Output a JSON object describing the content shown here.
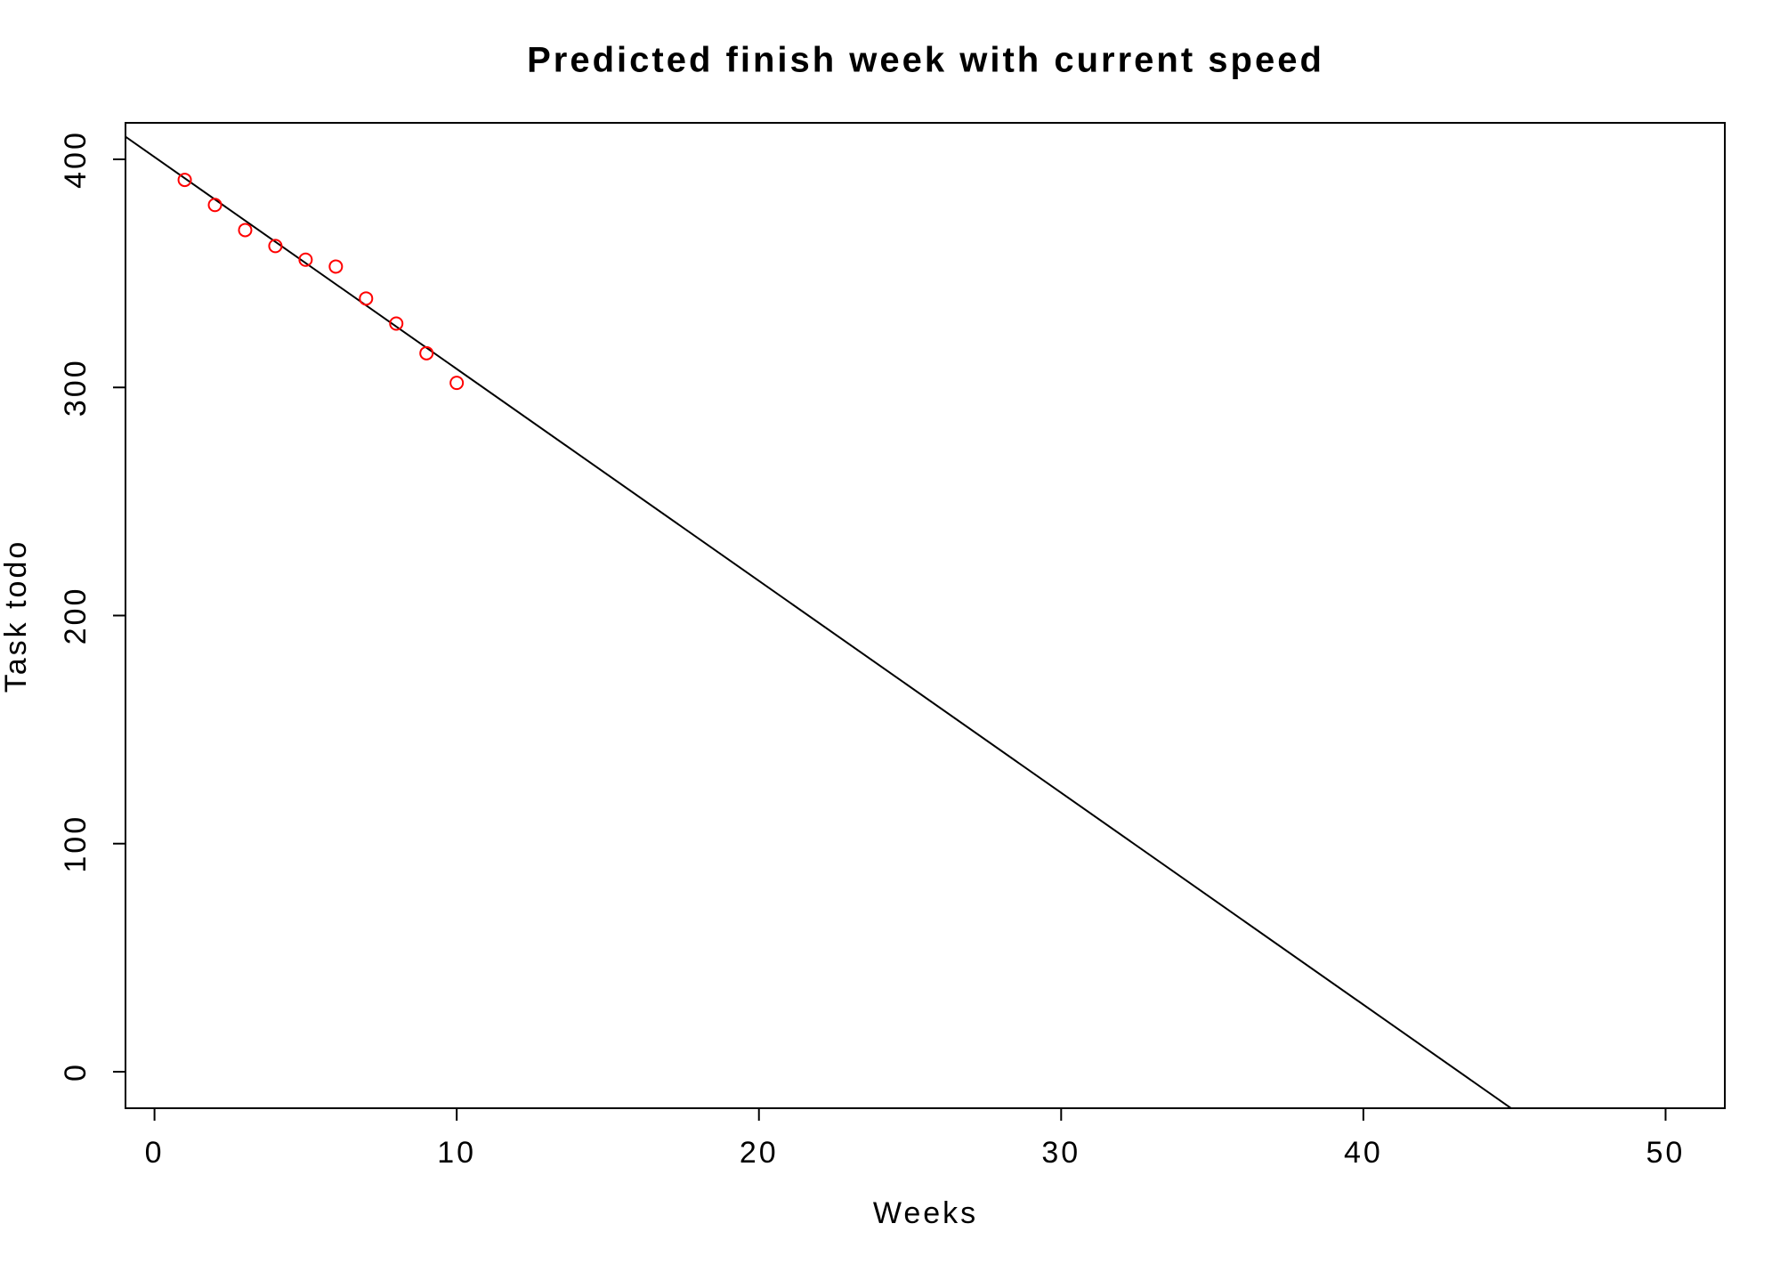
{
  "chart_data": {
    "type": "scatter",
    "title": "Predicted finish week with current speed",
    "x_label": "Weeks",
    "y_label": "Task todo",
    "x": [
      1,
      2,
      3,
      4,
      5,
      6,
      7,
      8,
      9,
      10
    ],
    "values": [
      391,
      380,
      369,
      362,
      356,
      353,
      339,
      328,
      315,
      302
    ],
    "color": "#ff0000",
    "fit_line": {
      "intercept": 401,
      "slope": -9.29,
      "color": "#000000"
    },
    "xlim": [
      -0.96,
      51.96
    ],
    "xticks": [
      0,
      10,
      20,
      30,
      40,
      50
    ],
    "ylim": [
      -16,
      416
    ],
    "yticks": [
      0,
      100,
      200,
      300,
      400
    ]
  }
}
